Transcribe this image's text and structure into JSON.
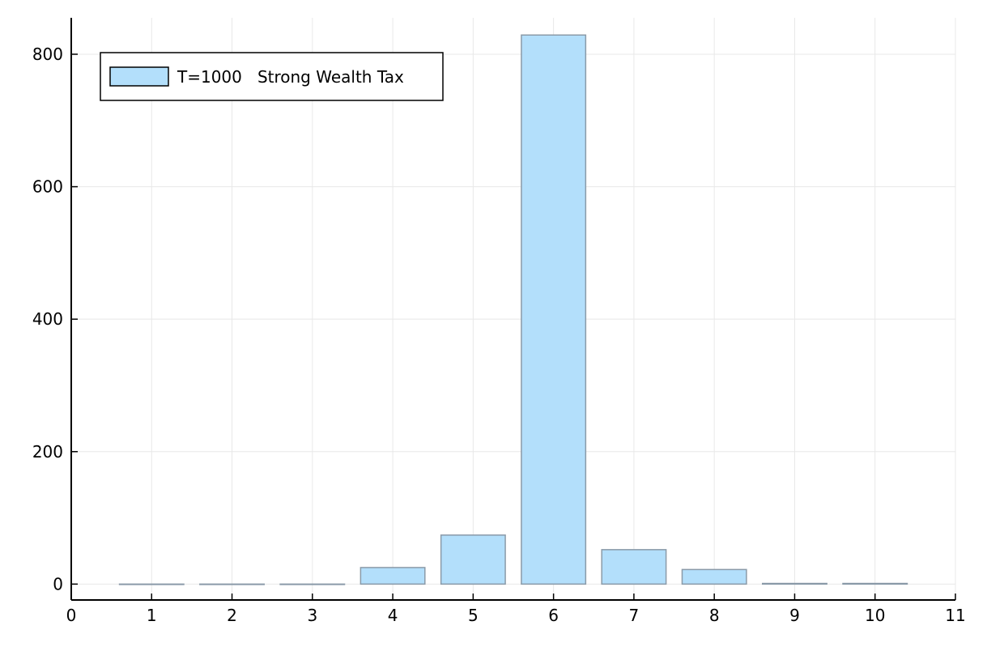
{
  "chart_data": {
    "type": "bar",
    "title": "",
    "xlabel": "",
    "ylabel": "",
    "x": [
      1,
      2,
      3,
      4,
      5,
      6,
      7,
      8,
      9,
      10
    ],
    "series": [
      {
        "name": "T=1000   Strong Wealth Tax",
        "values": [
          0,
          0,
          0,
          25,
          74,
          829,
          52,
          22,
          1,
          1
        ]
      }
    ],
    "xlim": [
      0,
      11
    ],
    "ylim": [
      -24,
      855
    ],
    "xticks": [
      0,
      1,
      2,
      3,
      4,
      5,
      6,
      7,
      8,
      9,
      10,
      11
    ],
    "yticks": [
      0,
      200,
      400,
      600,
      800
    ],
    "grid": true,
    "legend_position": "top-left",
    "colors": {
      "bar_fill": "#b3dffb",
      "bar_stroke": "#8a9aa8",
      "grid": "#e8e8e8",
      "axis": "#000000"
    }
  }
}
